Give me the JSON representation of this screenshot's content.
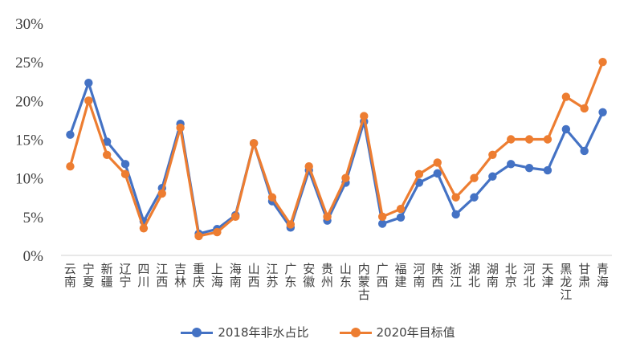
{
  "chart_data": {
    "type": "line",
    "title": "",
    "xlabel": "",
    "ylabel": "",
    "ylim": [
      0,
      30
    ],
    "y_ticks": [
      "0%",
      "5%",
      "10%",
      "15%",
      "20%",
      "25%",
      "30%"
    ],
    "y_tick_values": [
      0,
      5,
      10,
      15,
      20,
      25,
      30
    ],
    "grid": false,
    "legend_position": "bottom",
    "categories": [
      "云南",
      "宁夏",
      "新疆",
      "辽宁",
      "四川",
      "江西",
      "吉林",
      "重庆",
      "上海",
      "海南",
      "山西",
      "江苏",
      "广东",
      "安徽",
      "贵州",
      "山东",
      "内蒙古",
      "广西",
      "福建",
      "河南",
      "陕西",
      "浙江",
      "湖北",
      "湖南",
      "北京",
      "河北",
      "天津",
      "黑龙江",
      "甘肃",
      "青海"
    ],
    "series": [
      {
        "name": "2018年非水占比",
        "color": "#4472C4",
        "values": [
          15.6,
          22.3,
          14.7,
          11.8,
          4.4,
          8.7,
          17.0,
          2.8,
          3.4,
          5.2,
          14.5,
          7.0,
          3.6,
          11.0,
          4.5,
          9.4,
          17.3,
          4.1,
          4.9,
          9.4,
          10.6,
          5.3,
          7.5,
          10.2,
          11.8,
          11.3,
          11.0,
          16.3,
          13.5,
          18.5
        ]
      },
      {
        "name": "2020年目标值",
        "color": "#ED7D31",
        "values": [
          11.5,
          20.0,
          13.0,
          10.5,
          3.5,
          8.0,
          16.5,
          2.5,
          3.0,
          5.0,
          14.5,
          7.5,
          4.0,
          11.5,
          5.0,
          10.0,
          18.0,
          5.0,
          6.0,
          10.5,
          12.0,
          7.5,
          10.0,
          13.0,
          15.0,
          15.0,
          15.0,
          20.5,
          19.0,
          25.0
        ]
      }
    ]
  }
}
